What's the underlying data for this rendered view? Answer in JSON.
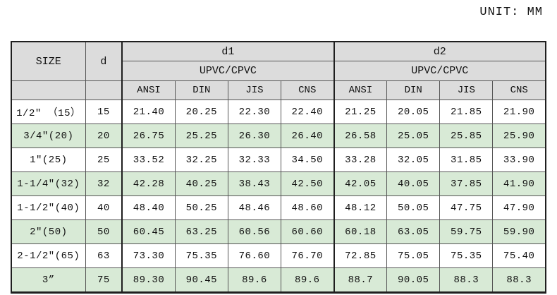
{
  "page": {
    "unit_label": "UNIT: MM"
  },
  "colors": {
    "header_bg": "#dcdcdc",
    "row_alt_bg": "#d8ead6",
    "border_thin": "#555555",
    "border_thick": "#1f1f1f"
  },
  "table": {
    "header": {
      "size_label": "SIZE",
      "d_label": "d",
      "d1_label": "d1",
      "d2_label": "d2",
      "material_label": "UPVC/CPVC",
      "standards": [
        "ANSI",
        "DIN",
        "JIS",
        "CNS"
      ]
    },
    "rows": [
      {
        "size": "1/2″ （15）",
        "d": "15",
        "d1": [
          "21.40",
          "20.25",
          "22.30",
          "22.40"
        ],
        "d2": [
          "21.25",
          "20.05",
          "21.85",
          "21.90"
        ]
      },
      {
        "size": "3/4″(20)",
        "d": "20",
        "d1": [
          "26.75",
          "25.25",
          "26.30",
          "26.40"
        ],
        "d2": [
          "26.58",
          "25.05",
          "25.85",
          "25.90"
        ]
      },
      {
        "size": "1″(25)",
        "d": "25",
        "d1": [
          "33.52",
          "32.25",
          "32.33",
          "34.50"
        ],
        "d2": [
          "33.28",
          "32.05",
          "31.85",
          "33.90"
        ]
      },
      {
        "size": "1-1/4″(32)",
        "d": "32",
        "d1": [
          "42.28",
          "40.25",
          "38.43",
          "42.50"
        ],
        "d2": [
          "42.05",
          "40.05",
          "37.85",
          "41.90"
        ]
      },
      {
        "size": "1-1/2″(40)",
        "d": "40",
        "d1": [
          "48.40",
          "50.25",
          "48.46",
          "48.60"
        ],
        "d2": [
          "48.12",
          "50.05",
          "47.75",
          "47.90"
        ]
      },
      {
        "size": "2″(50)",
        "d": "50",
        "d1": [
          "60.45",
          "63.25",
          "60.56",
          "60.60"
        ],
        "d2": [
          "60.18",
          "63.05",
          "59.75",
          "59.90"
        ]
      },
      {
        "size": "2-1/2″(65)",
        "d": "63",
        "d1": [
          "73.30",
          "75.35",
          "76.60",
          "76.70"
        ],
        "d2": [
          "72.85",
          "75.05",
          "75.35",
          "75.40"
        ]
      },
      {
        "size": "3”",
        "d": "75",
        "d1": [
          "89.30",
          "90.45",
          "89.6",
          "89.6"
        ],
        "d2": [
          "88.7",
          "90.05",
          "88.3",
          "88.3"
        ]
      }
    ]
  }
}
